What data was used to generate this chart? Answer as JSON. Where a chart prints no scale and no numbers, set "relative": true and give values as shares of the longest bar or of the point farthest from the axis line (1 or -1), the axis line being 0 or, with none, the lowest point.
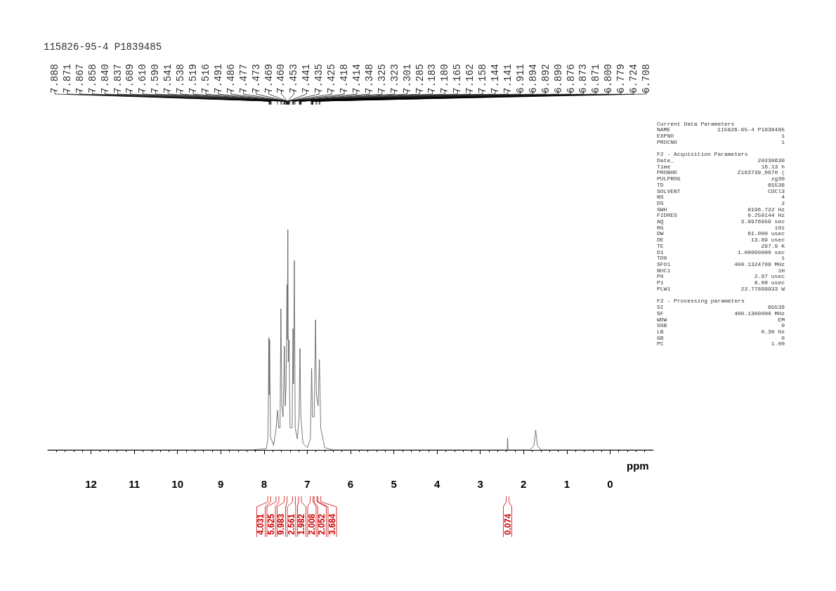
{
  "chart_data": {
    "type": "line",
    "relative": true,
    "xlabel": "ppm",
    "xlim": [
      13,
      -1
    ],
    "xticks": [
      12,
      11,
      10,
      9,
      8,
      7,
      6,
      5,
      4,
      3,
      2,
      1,
      0
    ],
    "grid": false,
    "marker": "none",
    "line_style": "solid",
    "series": [
      {
        "color": "#555555",
        "x": [
          13,
          8.3,
          7.95,
          7.91,
          7.888,
          7.88,
          7.871,
          7.85,
          7.78,
          7.72,
          7.69,
          7.66,
          7.63,
          7.61,
          7.59,
          7.56,
          7.53,
          7.51,
          7.49,
          7.47,
          7.46,
          7.45,
          7.44,
          7.42,
          7.4,
          7.35,
          7.33,
          7.32,
          7.3,
          7.28,
          7.23,
          7.19,
          7.17,
          7.15,
          7.1,
          7,
          6.93,
          6.9,
          6.88,
          6.84,
          6.81,
          6.79,
          6.75,
          6.72,
          6.69,
          6.6,
          6.4,
          2.45,
          2.38,
          2.37,
          2.36,
          1.85,
          1.76,
          1.72,
          1.68,
          1.6,
          -1
        ],
        "values": [
          0,
          0,
          0.005,
          0.05,
          0.51,
          0.25,
          0.5,
          0.06,
          0.02,
          0.1,
          0.18,
          0.1,
          0.1,
          0.64,
          0.2,
          0.15,
          0.47,
          0.2,
          0.3,
          0.75,
          0.5,
          1,
          0.4,
          0.5,
          0.1,
          0.1,
          0.55,
          0.3,
          0.86,
          0.1,
          0.05,
          0.15,
          0.46,
          0.15,
          0.03,
          0.01,
          0.05,
          0.37,
          0.15,
          0.15,
          0.59,
          0.25,
          0.2,
          0.41,
          0.1,
          0.01,
          0,
          0,
          0,
          0.054,
          0,
          0,
          0.02,
          0.09,
          0.02,
          0,
          0
        ]
      }
    ],
    "annotations": [
      "115826-95-4 P1839485",
      {
        "text": "7.888",
        "x": 7.888
      },
      {
        "text": "7.871",
        "x": 7.871
      },
      {
        "text": "7.867",
        "x": 7.867
      },
      {
        "text": "7.858",
        "x": 7.858
      },
      {
        "text": "7.840",
        "x": 7.84
      },
      {
        "text": "7.837",
        "x": 7.837
      },
      {
        "text": "7.689",
        "x": 7.689
      },
      {
        "text": "7.610",
        "x": 7.61
      },
      {
        "text": "7.590",
        "x": 7.59
      },
      {
        "text": "7.541",
        "x": 7.541
      },
      {
        "text": "7.538",
        "x": 7.538
      },
      {
        "text": "7.519",
        "x": 7.519
      },
      {
        "text": "7.516",
        "x": 7.516
      },
      {
        "text": "7.491",
        "x": 7.491
      },
      {
        "text": "7.486",
        "x": 7.486
      },
      {
        "text": "7.477",
        "x": 7.477
      },
      {
        "text": "7.473",
        "x": 7.473
      },
      {
        "text": "7.469",
        "x": 7.469
      },
      {
        "text": "7.460",
        "x": 7.46
      },
      {
        "text": "7.453",
        "x": 7.453
      },
      {
        "text": "7.441",
        "x": 7.441
      },
      {
        "text": "7.435",
        "x": 7.435
      },
      {
        "text": "7.425",
        "x": 7.425
      },
      {
        "text": "7.418",
        "x": 7.418
      },
      {
        "text": "7.414",
        "x": 7.414
      },
      {
        "text": "7.348",
        "x": 7.348
      },
      {
        "text": "7.325",
        "x": 7.325
      },
      {
        "text": "7.323",
        "x": 7.323
      },
      {
        "text": "7.301",
        "x": 7.301
      },
      {
        "text": "7.285",
        "x": 7.285
      },
      {
        "text": "7.183",
        "x": 7.183
      },
      {
        "text": "7.180",
        "x": 7.18
      },
      {
        "text": "7.165",
        "x": 7.165
      },
      {
        "text": "7.162",
        "x": 7.162
      },
      {
        "text": "7.158",
        "x": 7.158
      },
      {
        "text": "7.144",
        "x": 7.144
      },
      {
        "text": "7.141",
        "x": 7.141
      },
      {
        "text": "6.911",
        "x": 6.911
      },
      {
        "text": "6.894",
        "x": 6.894
      },
      {
        "text": "6.892",
        "x": 6.892
      },
      {
        "text": "6.890",
        "x": 6.89
      },
      {
        "text": "6.876",
        "x": 6.876
      },
      {
        "text": "6.873",
        "x": 6.873
      },
      {
        "text": "6.871",
        "x": 6.871
      },
      {
        "text": "6.800",
        "x": 6.8
      },
      {
        "text": "6.779",
        "x": 6.779
      },
      {
        "text": "6.724",
        "x": 6.724
      },
      {
        "text": "6.708",
        "x": 6.708
      },
      "Current Data Parameters",
      "NAME  115826-95-4 P1839485",
      "EXPNO  1",
      "PROCNO  1",
      "F2 - Acquisition Parameters",
      "Date_  20230630",
      "Time  16.13 h",
      "PROBHD  Z163739_0670 (",
      "PULPROG  zg30",
      "TD  65536",
      "SOLVENT  CDCl3",
      "NS  4",
      "DS  2",
      "SWH  8196.722 Hz",
      "FIDRES  0.250144 Hz",
      "AQ  3.9976959 sec",
      "RG  101",
      "DW  61.000 usec",
      "DE  13.89 usec",
      "TE  297.9 K",
      "D1  1.00000000 sec",
      "TD0  1",
      "SFO1  400.1324708 MHz",
      "NUC1  1H",
      "P0  2.67 usec",
      "P1  8.00 usec",
      "PLW1  22.77899933 W",
      "F2 - Processing parameters",
      "SI  65536",
      "SF  400.1300000 MHz",
      "WDW  EM",
      "SSB  0",
      "LB  0.30 Hz",
      "GB  0",
      "PC  1.00",
      {
        "text": "4.031",
        "x": 7.88
      },
      {
        "text": "5.625",
        "x": 7.69
      },
      {
        "text": "9.983",
        "x": 7.5
      },
      {
        "text": "2.561",
        "x": 7.31
      },
      {
        "text": "1.982",
        "x": 7.17
      },
      {
        "text": "2.008",
        "x": 6.9
      },
      {
        "text": "2.052",
        "x": 6.81
      },
      {
        "text": "3.684",
        "x": 6.72
      },
      {
        "text": "0.074",
        "x": 2.37
      }
    ]
  }
}
